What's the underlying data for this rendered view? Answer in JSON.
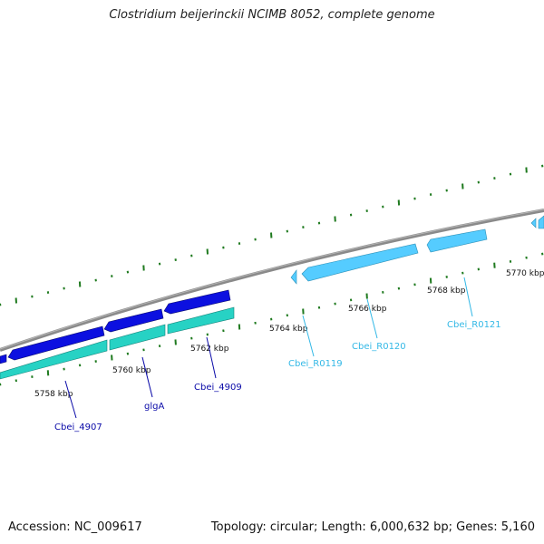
{
  "title": "Clostridium beijerinckii NCIMB 8052, complete genome",
  "footer": {
    "accession": "Accession: NC_009617",
    "stats": "Topology: circular; Length: 6,000,632 bp; Genes: 5,160"
  },
  "colors": {
    "backbone": "#8a8a8a",
    "cds": "#0c10e0",
    "cds_shadow": "#06086e",
    "gene": "#27d2c4",
    "gene_shadow": "#138279",
    "rna": "#55ccff",
    "rna_shadow": "#2a8fb8",
    "ticks": "#1f7a1f",
    "cds_label": "#0a0aa8",
    "rna_label": "#33b8e6"
  },
  "ticks": {
    "labels": [
      "5758 kbp",
      "5760 kbp",
      "5762 kbp",
      "5764 kbp",
      "5766 kbp",
      "5768 kbp",
      "5770 kbp"
    ]
  },
  "labels": {
    "cbei_4907": "Cbei_4907",
    "glga": "glgA",
    "cbei_4909": "Cbei_4909",
    "cbei_r0119": "Cbei_R0119",
    "cbei_r0120": "Cbei_R0120",
    "cbei_r0121": "Cbei_R0121"
  }
}
